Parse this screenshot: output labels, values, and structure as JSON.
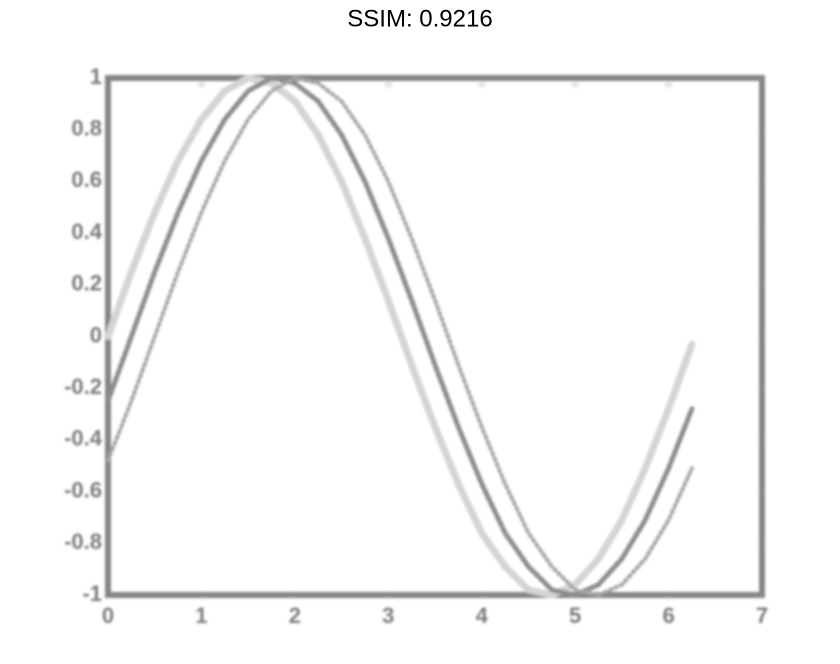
{
  "chart_data": {
    "type": "line",
    "title": "SSIM: 0.9216",
    "x": [
      0,
      0.25,
      0.5,
      0.75,
      1,
      1.25,
      1.5,
      1.75,
      2,
      2.25,
      2.5,
      2.75,
      3,
      3.25,
      3.5,
      3.75,
      4,
      4.25,
      4.5,
      4.75,
      5,
      5.25,
      5.5,
      5.75,
      6,
      6.25
    ],
    "series": [
      {
        "color": "#d4d4d4",
        "style": "solid",
        "values": [
          0,
          0.25,
          0.48,
          0.68,
          0.84,
          0.95,
          1.0,
          0.98,
          0.91,
          0.78,
          0.6,
          0.38,
          0.14,
          -0.11,
          -0.35,
          -0.57,
          -0.76,
          -0.89,
          -0.98,
          -1.0,
          -0.96,
          -0.86,
          -0.71,
          -0.51,
          -0.28,
          -0.03
        ]
      },
      {
        "color": "#8c8c8c",
        "style": "dashed",
        "values": [
          -0.25,
          0,
          0.25,
          0.48,
          0.68,
          0.84,
          0.95,
          1.0,
          0.98,
          0.91,
          0.78,
          0.6,
          0.38,
          0.14,
          -0.11,
          -0.35,
          -0.57,
          -0.76,
          -0.89,
          -0.98,
          -1.0,
          -0.96,
          -0.86,
          -0.71,
          -0.51,
          -0.28
        ]
      },
      {
        "color": "#a6a6a6",
        "style": "dotted",
        "values": [
          -0.48,
          -0.25,
          0,
          0.25,
          0.48,
          0.68,
          0.84,
          0.95,
          1.0,
          0.98,
          0.91,
          0.78,
          0.6,
          0.38,
          0.14,
          -0.11,
          -0.35,
          -0.57,
          -0.76,
          -0.89,
          -0.98,
          -1.0,
          -0.96,
          -0.86,
          -0.71,
          -0.51
        ]
      }
    ],
    "xlim": [
      0,
      7
    ],
    "xticks": [
      0,
      1,
      2,
      3,
      4,
      5,
      6,
      7
    ],
    "ylim": [
      -1,
      1
    ],
    "yticks": [
      -1,
      -0.8,
      -0.6,
      -0.4,
      -0.2,
      0,
      0.2,
      0.4,
      0.6,
      0.8,
      1
    ]
  }
}
